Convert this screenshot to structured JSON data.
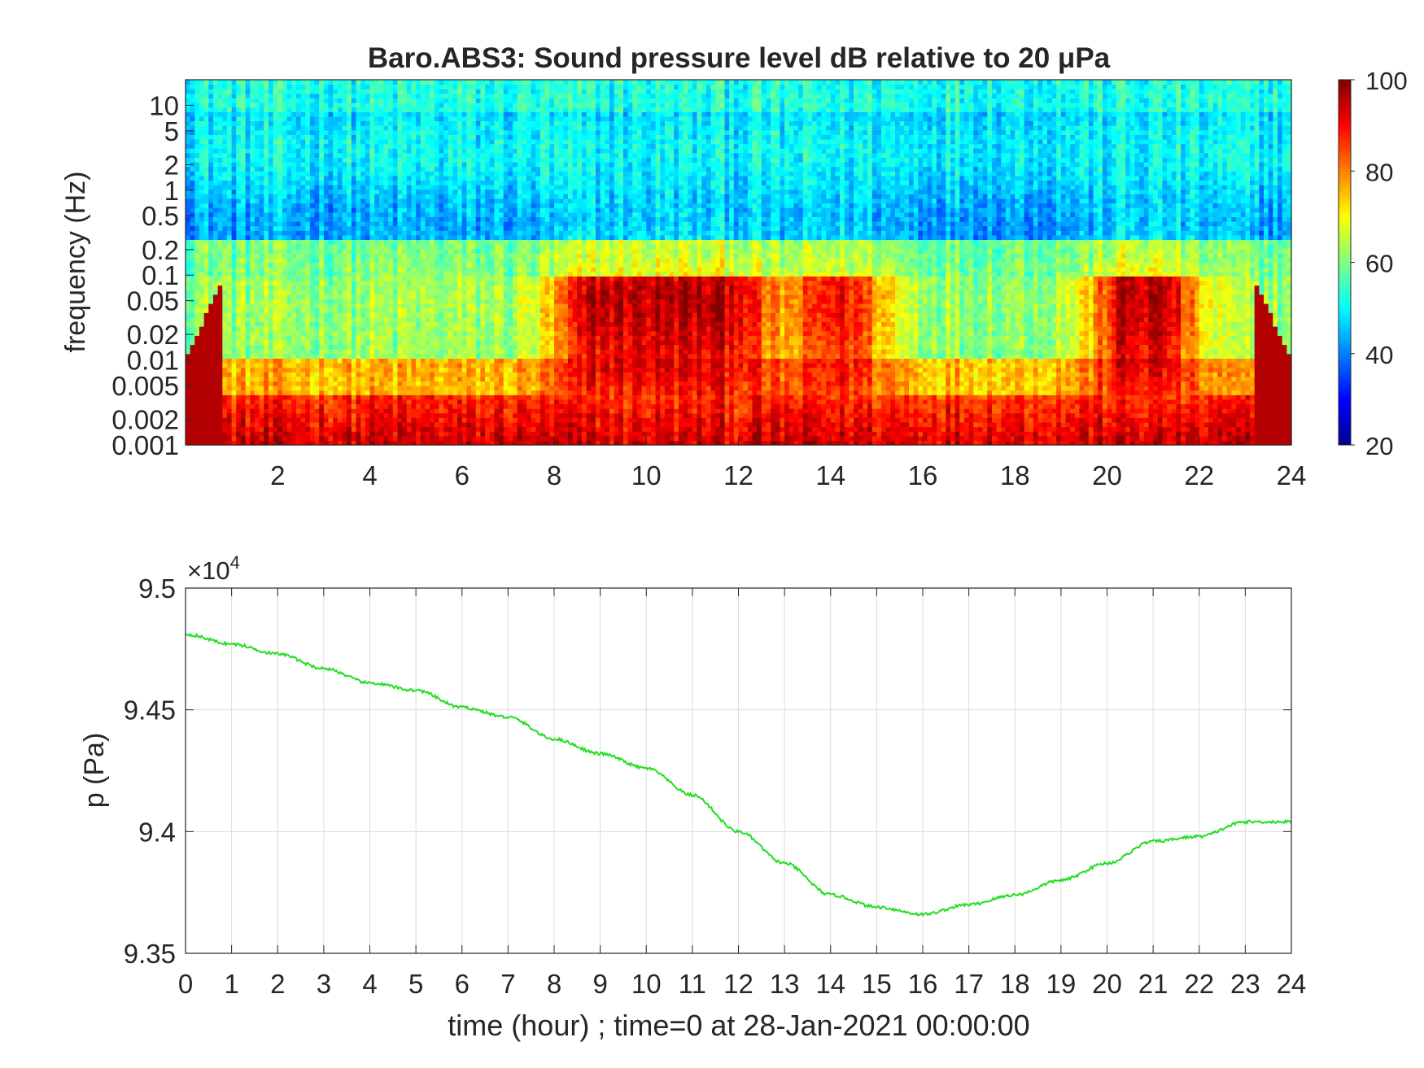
{
  "chart_data": [
    {
      "type": "heatmap",
      "title": "Baro.ABS3: Sound pressure level dB relative to 20 μPa",
      "xlabel": "",
      "ylabel": "frequency (Hz)",
      "xlim": [
        0,
        24
      ],
      "ylim": [
        0.001,
        20
      ],
      "yscale": "log",
      "x_ticks": [
        2,
        4,
        6,
        8,
        10,
        12,
        14,
        16,
        18,
        20,
        22,
        24
      ],
      "y_ticks": [
        {
          "value": 0.001,
          "label": "0.001"
        },
        {
          "value": 0.002,
          "label": "0.002"
        },
        {
          "value": 0.005,
          "label": "0.005"
        },
        {
          "value": 0.01,
          "label": "0.01"
        },
        {
          "value": 0.02,
          "label": "0.02"
        },
        {
          "value": 0.05,
          "label": "0.05"
        },
        {
          "value": 0.1,
          "label": "0.1"
        },
        {
          "value": 0.2,
          "label": "0.2"
        },
        {
          "value": 0.5,
          "label": "0.5"
        },
        {
          "value": 1,
          "label": "1"
        },
        {
          "value": 2,
          "label": "2"
        },
        {
          "value": 5,
          "label": "5"
        },
        {
          "value": 10,
          "label": "10"
        }
      ],
      "colorbar": {
        "colormap": "jet",
        "range": [
          20,
          100
        ],
        "ticks": [
          20,
          40,
          60,
          80,
          100
        ]
      },
      "grid": false,
      "activity_bursts_hours": [
        {
          "center": 9,
          "strength": 0.75
        },
        {
          "center": 10.5,
          "strength": 1.0
        },
        {
          "center": 11.6,
          "strength": 0.8
        },
        {
          "center": 14.2,
          "strength": 0.7
        },
        {
          "center": 20.8,
          "strength": 1.0
        }
      ]
    },
    {
      "type": "line",
      "title": "",
      "xlabel": "time (hour) ; time=0 at 28-Jan-2021 00:00:00",
      "ylabel": "p (Pa)",
      "y_multiplier": "×10",
      "y_multiplier_exp": "4",
      "xlim": [
        0,
        24
      ],
      "ylim": [
        9.35,
        9.5
      ],
      "x_ticks": [
        0,
        1,
        2,
        3,
        4,
        5,
        6,
        7,
        8,
        9,
        10,
        11,
        12,
        13,
        14,
        15,
        16,
        17,
        18,
        19,
        20,
        21,
        22,
        23,
        24
      ],
      "y_ticks": [
        {
          "value": 9.35,
          "label": "9.35"
        },
        {
          "value": 9.4,
          "label": "9.4"
        },
        {
          "value": 9.45,
          "label": "9.45"
        },
        {
          "value": 9.5,
          "label": "9.5"
        }
      ],
      "grid": true,
      "series": [
        {
          "color": "#22dd22",
          "x": [
            0,
            1,
            2,
            3,
            4,
            5,
            6,
            7,
            8,
            9,
            10,
            11,
            12,
            13,
            14,
            15,
            16,
            17,
            18,
            19,
            20,
            21,
            22,
            23,
            24
          ],
          "y": [
            9.481,
            9.477,
            9.473,
            9.467,
            9.461,
            9.458,
            9.451,
            9.447,
            9.438,
            9.432,
            9.426,
            9.415,
            9.4,
            9.387,
            9.374,
            9.369,
            9.366,
            9.37,
            9.374,
            9.38,
            9.387,
            9.396,
            9.398,
            9.404,
            9.404
          ]
        }
      ]
    }
  ]
}
